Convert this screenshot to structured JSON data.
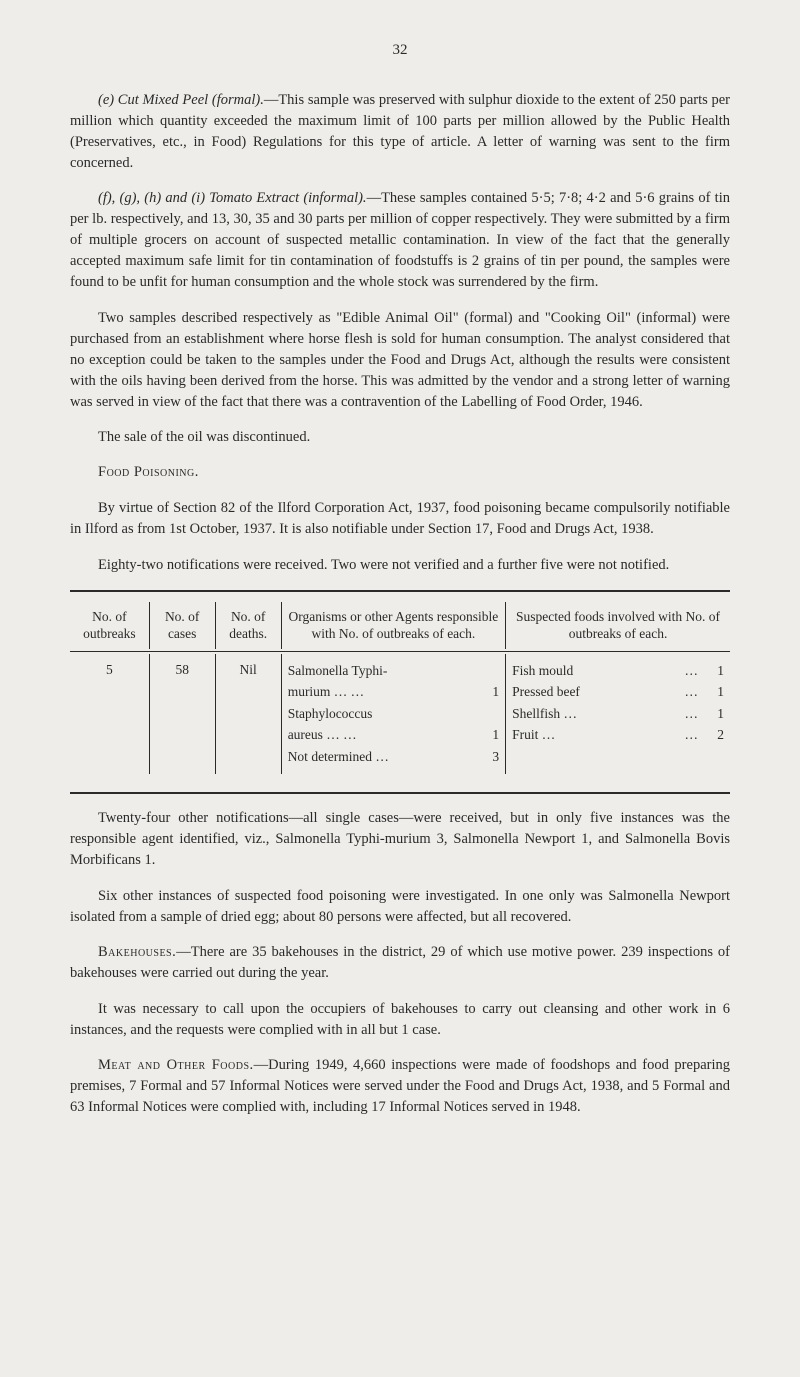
{
  "page_number": "32",
  "para_e": {
    "lead": "(e) Cut Mixed Peel (formal).",
    "body": "—This sample was preserved with sulphur dioxide to the extent of 250 parts per million which quantity exceeded the maximum limit of 100 parts per million allowed by the Public Health (Preservatives, etc., in Food) Regulations for this type of article. A letter of warning was sent to the firm concerned."
  },
  "para_f": {
    "lead": "(f), (g), (h) and (i) Tomato Extract (informal).",
    "body": "—These samples contained 5·5; 7·8; 4·2 and 5·6 grains of tin per lb. respectively, and 13, 30, 35 and 30 parts per million of copper respectively. They were submitted by a firm of multiple grocers on account of suspected metallic contamination. In view of the fact that the generally accepted maximum safe limit for tin contamination of foodstuffs is 2 grains of tin per pound, the samples were found to be unfit for human consumption and the whole stock was surrendered by the firm."
  },
  "para_two_samples": "Two samples described respectively as \"Edible Animal Oil\" (formal) and \"Cooking Oil\" (informal) were purchased from an establishment where horse flesh is sold for human consumption. The analyst considered that no exception could be taken to the samples under the Food and Drugs Act, although the results were consistent with the oils having been derived from the horse. This was admitted by the vendor and a strong letter of warning was served in view of the fact that there was a contravention of the Labelling of Food Order, 1946.",
  "para_sale": "The sale of the oil was discontinued.",
  "heading_food_poisoning": "Food Poisoning.",
  "para_virtue": "By virtue of Section 82 of the Ilford Corporation Act, 1937, food poisoning became compulsorily notifiable in Ilford as from 1st October, 1937. It is also notifiable under Section 17, Food and Drugs Act, 1938.",
  "para_eighty": "Eighty-two notifications were received. Two were not verified and a further five were not notified.",
  "table": {
    "headers": {
      "outbreaks": "No. of outbreaks",
      "cases": "No. of cases",
      "deaths": "No. of deaths.",
      "organisms": "Organisms or other Agents responsible with No. of outbreaks of each.",
      "suspected": "Suspected foods involved with No. of outbreaks of each."
    },
    "row": {
      "outbreaks": "5",
      "cases": "58",
      "deaths": "Nil",
      "organisms": [
        {
          "label": "Salmonella Typhi-",
          "val": ""
        },
        {
          "label": "  murium …   …",
          "val": "1"
        },
        {
          "label": "Staphylococcus",
          "val": ""
        },
        {
          "label": "  aureus   …   …",
          "val": "1"
        },
        {
          "label": "Not determined  …",
          "val": "3"
        }
      ],
      "suspected": [
        {
          "label": "Fish mould",
          "dots": "…",
          "val": "1"
        },
        {
          "label": "Pressed beef",
          "dots": "…",
          "val": "1"
        },
        {
          "label": "Shellfish   …",
          "dots": "…",
          "val": "1"
        },
        {
          "label": "Fruit    …",
          "dots": "…",
          "val": "2"
        }
      ]
    },
    "col_widths": [
      "12%",
      "10%",
      "10%",
      "34%",
      "34%"
    ]
  },
  "para_twentyfour": "Twenty-four other notifications—all single cases—were received, but in only five instances was the responsible agent identified, viz., Salmonella Typhi-murium 3, Salmonella Newport 1, and Salmonella Bovis Morbificans 1.",
  "para_six": "Six other instances of suspected food poisoning were investigated. In one only was Salmonella Newport isolated from a sample of dried egg; about 80 persons were affected, but all recovered.",
  "para_bakehouses": {
    "lead": "Bakehouses.",
    "body": "—There are 35 bakehouses in the district, 29 of which use motive power. 239 inspections of bakehouses were carried out during the year."
  },
  "para_necessary": "It was necessary to call upon the occupiers of bakehouses to carry out cleansing and other work in 6 instances, and the requests were complied with in all but 1 case.",
  "para_meat": {
    "lead": "Meat and Other Foods.",
    "body": "—During 1949, 4,660 inspections were made of foodshops and food preparing premises, 7 Formal and 57 Informal Notices were served under the Food and Drugs Act, 1938, and 5 Formal and 63 Informal Notices were complied with, including 17 Informal Notices served in 1948."
  }
}
